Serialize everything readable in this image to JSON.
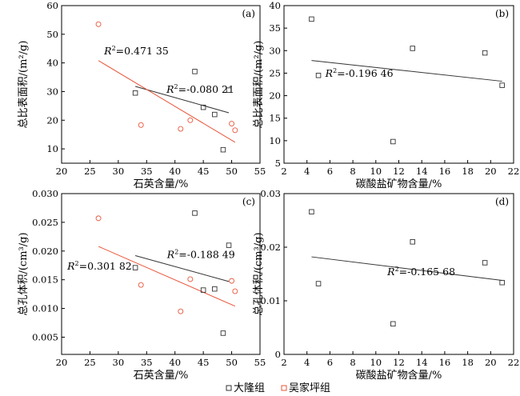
{
  "colors": {
    "daLong": "#333333",
    "wuJiaPing": "#e8553a",
    "axis": "#000000"
  },
  "legend": [
    {
      "name": "大隆组",
      "color_key": "daLong",
      "marker": "square"
    },
    {
      "name": "吴家坪组",
      "color_key": "wuJiaPing",
      "marker": "circle"
    }
  ],
  "chart_data": [
    {
      "panel": "(a)",
      "type": "scatter",
      "xlabel": "石英含量/%",
      "ylabel": "总比表面积/(m²/g)",
      "xlim": [
        20,
        55
      ],
      "ylim": [
        5,
        60
      ],
      "xticks": [
        20,
        25,
        30,
        35,
        40,
        45,
        50,
        55
      ],
      "yticks": [
        10,
        20,
        30,
        40,
        50,
        60
      ],
      "series": [
        {
          "name": "大隆组",
          "color_key": "daLong",
          "marker": "square",
          "x": [
            33,
            43.5,
            45,
            47,
            48.5,
            49.5
          ],
          "y": [
            29.5,
            37,
            24.5,
            22,
            9.7,
            30.5
          ]
        },
        {
          "name": "吴家坪组",
          "color_key": "wuJiaPing",
          "marker": "circle",
          "x": [
            26.5,
            34,
            41,
            42.7,
            50,
            50.6
          ],
          "y": [
            53.5,
            18.3,
            17,
            20,
            18.8,
            16.5
          ]
        }
      ],
      "fits": [
        {
          "color_key": "daLong",
          "x": [
            33,
            49.5
          ],
          "y": [
            31.8,
            22.6
          ],
          "label": "R²=-0.080 21",
          "label_anchor": [
            38.5,
            29.6
          ]
        },
        {
          "color_key": "wuJiaPing",
          "x": [
            26.5,
            50.6
          ],
          "y": [
            40.8,
            12.3
          ],
          "label": "R²=0.471 35",
          "label_anchor": [
            27.5,
            43
          ]
        }
      ]
    },
    {
      "panel": "(b)",
      "type": "scatter",
      "xlabel": "碳酸盐矿物含量/%",
      "ylabel": "总比表面积/(m²/g)",
      "xlim": [
        2,
        22
      ],
      "ylim": [
        5,
        40
      ],
      "xticks": [
        2,
        4,
        6,
        8,
        10,
        12,
        14,
        16,
        18,
        20,
        22
      ],
      "yticks": [
        5,
        10,
        15,
        20,
        25,
        30,
        35,
        40
      ],
      "series": [
        {
          "name": "大隆组",
          "color_key": "daLong",
          "marker": "square",
          "x": [
            4.4,
            5,
            11.5,
            13.2,
            19.5,
            21
          ],
          "y": [
            37,
            24.5,
            9.8,
            30.5,
            29.5,
            22.3
          ]
        }
      ],
      "fits": [
        {
          "color_key": "daLong",
          "x": [
            4.4,
            21
          ],
          "y": [
            27.8,
            23.2
          ],
          "label": "R²=-0.196 46",
          "label_anchor": [
            5.6,
            24.2
          ]
        }
      ]
    },
    {
      "panel": "(c)",
      "type": "scatter",
      "xlabel": "石英含量/%",
      "ylabel": "总孔体积/(cm³/g)",
      "xlim": [
        20,
        55
      ],
      "ylim": [
        0.002,
        0.03
      ],
      "xticks": [
        20,
        25,
        30,
        35,
        40,
        45,
        50,
        55
      ],
      "yticks": [
        0.005,
        0.01,
        0.015,
        0.02,
        0.025,
        0.03
      ],
      "ytick_labels": [
        "0.005",
        "0.010",
        "0.015",
        "0.020",
        "0.025",
        "0.030"
      ],
      "series": [
        {
          "name": "大隆组",
          "color_key": "daLong",
          "marker": "square",
          "x": [
            33,
            43.5,
            45,
            47,
            48.5,
            49.5
          ],
          "y": [
            0.0171,
            0.0266,
            0.0132,
            0.0134,
            0.0057,
            0.021
          ]
        },
        {
          "name": "吴家坪组",
          "color_key": "wuJiaPing",
          "marker": "circle",
          "x": [
            26.5,
            34,
            41,
            42.7,
            50,
            50.6
          ],
          "y": [
            0.0257,
            0.0141,
            0.0095,
            0.0151,
            0.0148,
            0.013
          ]
        }
      ],
      "fits": [
        {
          "color_key": "daLong",
          "x": [
            33,
            49.5
          ],
          "y": [
            0.0192,
            0.0147
          ],
          "label": "R²=-0.188 49",
          "label_anchor": [
            38.6,
            0.0188
          ]
        },
        {
          "color_key": "wuJiaPing",
          "x": [
            26.5,
            50.6
          ],
          "y": [
            0.0208,
            0.0104
          ],
          "label": "R²=0.301 82",
          "label_anchor": [
            21,
            0.0168
          ]
        }
      ]
    },
    {
      "panel": "(d)",
      "type": "scatter",
      "xlabel": "碳酸盐矿物含量/%",
      "ylabel": "总孔体积/(cm³/g)",
      "xlim": [
        2,
        22
      ],
      "ylim": [
        0,
        0.03
      ],
      "xticks": [
        2,
        4,
        6,
        8,
        10,
        12,
        14,
        16,
        18,
        20,
        22
      ],
      "yticks": [
        0,
        0.01,
        0.02,
        0.03
      ],
      "ytick_labels": [
        "0",
        "0.01",
        "0.02",
        "0.03"
      ],
      "series": [
        {
          "name": "大隆组",
          "color_key": "daLong",
          "marker": "square",
          "x": [
            4.4,
            5,
            11.5,
            13.2,
            19.5,
            21
          ],
          "y": [
            0.0266,
            0.0132,
            0.0057,
            0.021,
            0.0171,
            0.0134
          ]
        }
      ],
      "fits": [
        {
          "color_key": "daLong",
          "x": [
            4.4,
            21
          ],
          "y": [
            0.0182,
            0.0138
          ],
          "label": "R²=-0.165 68",
          "label_anchor": [
            11,
            0.0148
          ]
        }
      ]
    }
  ]
}
